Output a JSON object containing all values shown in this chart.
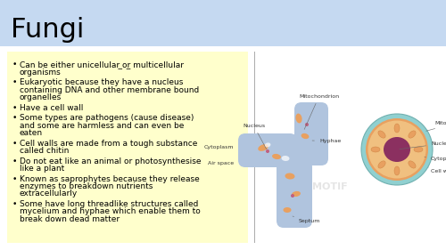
{
  "title": "Fungi",
  "title_bg": "#c5d9f1",
  "title_color": "#000000",
  "title_fontsize": 22,
  "content_bg": "#ffffcc",
  "slide_bg": "#ffffff",
  "bullet_points": [
    "Can be either unicellular ̲or̲ multicellular\norganisms",
    "Eukaryotic because they have a nucleus\ncontaining DNA and other membrane bound\norganelles",
    "Have a cell wall",
    "Some types are pathogens (cause disease)\nand some are harmless and can even be\neaten",
    "Cell walls are made from a tough substance\ncalled chitin",
    "Do not eat like an animal or photosynthesise\nlike a plant",
    "Known as saprophytes because they release\nenzymes to breakdown nutrients\nextracellularly",
    "Some have long threadlike structures called\nmycelium and hyphae which enable them to\nbreak down dead matter"
  ],
  "bullet_fontsize": 6.5,
  "bullet_color": "#000000",
  "diagram_area_bg": "#ffffff",
  "fungus_body_color": "#b0c4de",
  "fungus_cell_oval_color": "#e8a060",
  "fungus_nucleus_color": "#c06080",
  "fungus_cell_wall_color": "#b0c4de",
  "circle_cell_outer": "#80c0c0",
  "circle_cell_inner_bg": "#e8a060",
  "circle_nucleus_color": "#8b3060"
}
